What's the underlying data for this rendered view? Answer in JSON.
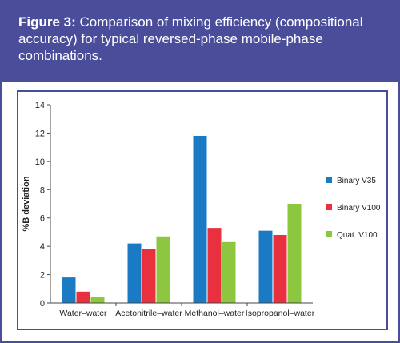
{
  "figure": {
    "label": "Figure 3:",
    "caption": "Comparison of mixing efficiency (compositional accuracy) for typical reversed-phase mobile-phase combinations."
  },
  "chart_data": {
    "type": "bar",
    "categories": [
      "Water–water",
      "Acetonitrile–water",
      "Methanol–water",
      "Isopropanol–water"
    ],
    "series": [
      {
        "name": "Binary V35",
        "color": "#1a7bc4",
        "values": [
          1.8,
          4.2,
          11.8,
          5.1
        ]
      },
      {
        "name": "Binary V100",
        "color": "#e8303f",
        "values": [
          0.8,
          3.8,
          5.3,
          4.8
        ]
      },
      {
        "name": "Quat. V100",
        "color": "#8dc63f",
        "values": [
          0.4,
          4.7,
          4.3,
          7.0
        ]
      }
    ],
    "ylabel": "%B deviation",
    "xlabel": "",
    "ylim": [
      0,
      14
    ],
    "yticks": [
      0,
      2,
      4,
      6,
      8,
      10,
      12,
      14
    ],
    "grid": false,
    "legend_position": "right"
  }
}
